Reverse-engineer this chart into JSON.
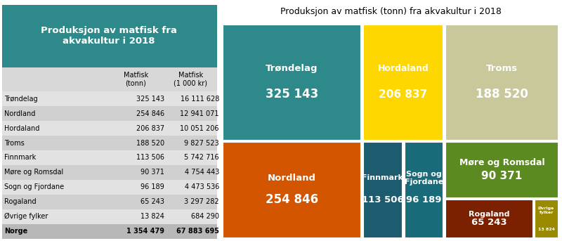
{
  "title_treemap": "Produksjon av matfisk (tonn) fra akvakultur i 2018",
  "title_table": "Produksjon av matfisk fra\nakvakultur i 2018",
  "rows": [
    [
      "Trøndelag",
      "325 143",
      "16 111 628"
    ],
    [
      "Nordland",
      "254 846",
      "12 941 071"
    ],
    [
      "Hordaland",
      "206 837",
      "10 051 206"
    ],
    [
      "Troms",
      "188 520",
      "9 827 523"
    ],
    [
      "Finnmark",
      "113 506",
      "5 742 716"
    ],
    [
      "Møre og Romsdal",
      "90 371",
      "4 754 443"
    ],
    [
      "Sogn og Fjordane",
      "96 189",
      "4 473 536"
    ],
    [
      "Rogaland",
      "65 243",
      "3 297 282"
    ],
    [
      "Øvrige fylker",
      "13 824",
      "684 290"
    ],
    [
      "Norge",
      "1 354 479",
      "67 883 695"
    ]
  ],
  "table_header_bg": "#2E8A8A",
  "table_header_color": "#ffffff",
  "regions": [
    {
      "name": "Trøndelag",
      "value": 325143,
      "color": "#2E8A8A"
    },
    {
      "name": "Nordland",
      "value": 254846,
      "color": "#D45500"
    },
    {
      "name": "Hordaland",
      "value": 206837,
      "color": "#FFD700"
    },
    {
      "name": "Troms",
      "value": 188520,
      "color": "#C8C89A"
    },
    {
      "name": "Finnmark",
      "value": 113506,
      "color": "#1D5B6E"
    },
    {
      "name": "Sogn og\nFjordane",
      "value": 96189,
      "color": "#1A6B7A"
    },
    {
      "name": "Møre og Romsdal",
      "value": 90371,
      "color": "#5A8A20"
    },
    {
      "name": "Rogaland",
      "value": 65243,
      "color": "#7B2000"
    },
    {
      "name": "Øvrige\nfylker",
      "value": 13824,
      "color": "#9A8A00"
    }
  ],
  "treemap_rects": {
    "Trøndelag": [
      0.0,
      0.0,
      0.415,
      0.545
    ],
    "Nordland": [
      0.0,
      0.545,
      0.415,
      0.455
    ],
    "Hordaland": [
      0.415,
      0.0,
      0.245,
      0.545
    ],
    "Troms": [
      0.66,
      0.0,
      0.34,
      0.545
    ],
    "Finnmark": [
      0.415,
      0.545,
      0.123,
      0.455
    ],
    "Sogn og\nFjordane": [
      0.538,
      0.545,
      0.122,
      0.455
    ],
    "Møre og Romsdal": [
      0.66,
      0.545,
      0.34,
      0.27
    ],
    "Rogaland": [
      0.66,
      0.815,
      0.265,
      0.185
    ],
    "Øvrige\nfylker": [
      0.925,
      0.815,
      0.075,
      0.185
    ]
  },
  "value_labels": {
    "Trøndelag": "325 143",
    "Nordland": "254 846",
    "Hordaland": "206 837",
    "Troms": "188 520",
    "Finnmark": "113 506",
    "Sogn og\nFjordane": "96 189",
    "Møre og Romsdal": "90 371",
    "Rogaland": "65 243",
    "Øvrige\nfylker": "13 824"
  },
  "bg_color": "#ffffff"
}
